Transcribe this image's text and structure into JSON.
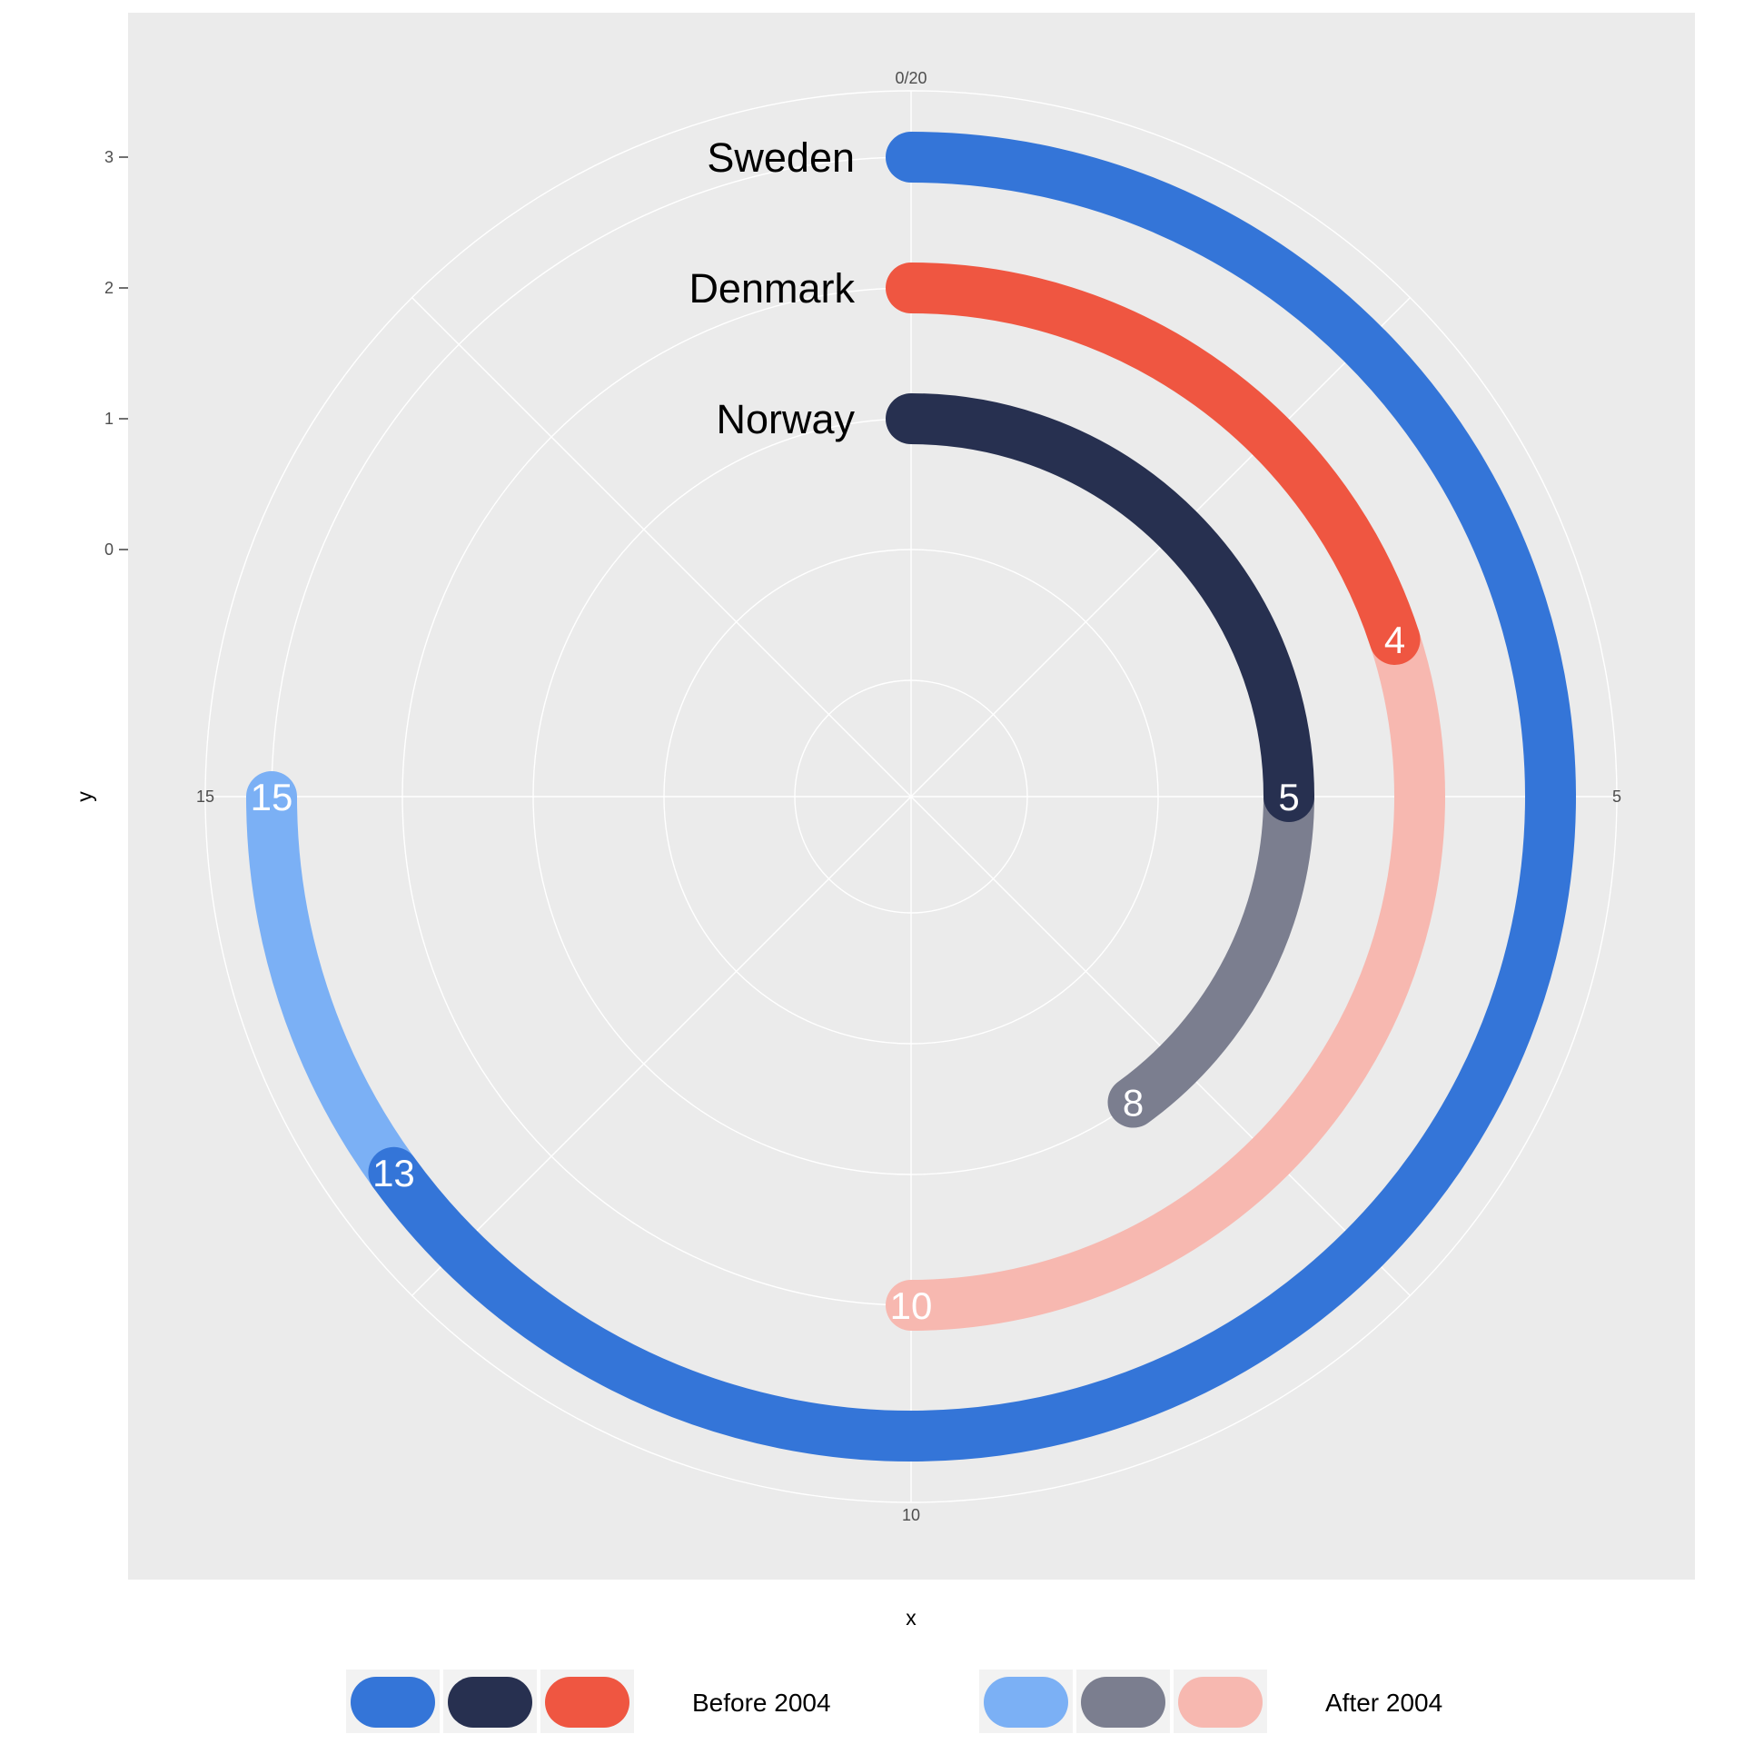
{
  "chart_data": {
    "type": "radial-bar",
    "title": "",
    "xlabel": "x",
    "ylabel": "y",
    "x_ticks": [
      "0/20",
      "5",
      "10",
      "15"
    ],
    "x_tick_values": [
      0,
      5,
      10,
      15
    ],
    "y_ticks": [
      "0",
      "1",
      "2",
      "3"
    ],
    "y_tick_values": [
      0,
      1,
      2,
      3
    ],
    "xlim": [
      0,
      20
    ],
    "grid": true,
    "legend_position": "bottom",
    "legend": [
      {
        "label": "Before 2004",
        "colors": [
          "#3475d8",
          "#273050",
          "#ef5641"
        ]
      },
      {
        "label": "After 2004",
        "colors": [
          "#7bb0f5",
          "#7b7e8f",
          "#f7b8b0"
        ]
      }
    ],
    "series": [
      {
        "name": "Sweden",
        "y": 3,
        "before_end": 13,
        "after_end": 15,
        "before_color": "#3475d8",
        "after_color": "#7bb0f5"
      },
      {
        "name": "Denmark",
        "y": 2,
        "before_end": 4,
        "after_end": 10,
        "before_color": "#ef5641",
        "after_color": "#f7b8b0"
      },
      {
        "name": "Norway",
        "y": 1,
        "before_end": 5,
        "after_end": 8,
        "before_color": "#273050",
        "after_color": "#7b7e8f"
      }
    ]
  },
  "colors": {
    "panel_background": "#ebebeb",
    "grid_line": "#ffffff",
    "tick_mark": "#333333"
  }
}
